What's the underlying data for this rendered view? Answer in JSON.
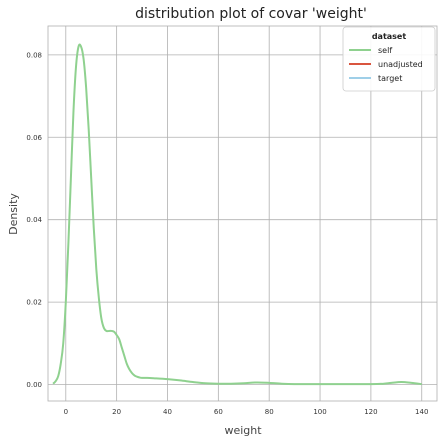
{
  "chart_data": {
    "type": "line",
    "title": "distribution plot of covar 'weight'",
    "xlabel": "weight",
    "ylabel": "Density",
    "xlim": [
      -7,
      146
    ],
    "ylim": [
      -0.004,
      0.087
    ],
    "xticks": [
      0,
      20,
      40,
      60,
      80,
      100,
      120,
      140
    ],
    "xtick_labels": [
      "0",
      "20",
      "40",
      "60",
      "80",
      "100",
      "120",
      "140"
    ],
    "yticks": [
      0.0,
      0.02,
      0.04,
      0.06,
      0.08
    ],
    "ytick_labels": [
      "0.00",
      "0.02",
      "0.04",
      "0.06",
      "0.08"
    ],
    "grid": true,
    "legend": {
      "title": "dataset",
      "placement": "top-right",
      "entries": [
        {
          "label": "self",
          "color": "#8fd18f"
        },
        {
          "label": "unadjusted",
          "color": "#d9553f"
        },
        {
          "label": "target",
          "color": "#9fcfe8"
        }
      ]
    },
    "series": [
      {
        "name": "self",
        "color": "#8fd18f",
        "x": [
          -5,
          -4,
          -3,
          -2,
          -1,
          0,
          1,
          2,
          3,
          4,
          5,
          6,
          7,
          8,
          9,
          10,
          11,
          12,
          13,
          14,
          15,
          16,
          17,
          18,
          19,
          20,
          21,
          22,
          23,
          24,
          25,
          26,
          27,
          28,
          29,
          30,
          32,
          35,
          40,
          45,
          50,
          55,
          60,
          65,
          70,
          75,
          80,
          85,
          90,
          95,
          100,
          105,
          110,
          115,
          120,
          125,
          128,
          132,
          136,
          140
        ],
        "y": [
          0.0002,
          0.0008,
          0.002,
          0.005,
          0.01,
          0.02,
          0.034,
          0.05,
          0.066,
          0.077,
          0.082,
          0.082,
          0.079,
          0.072,
          0.062,
          0.05,
          0.038,
          0.028,
          0.021,
          0.016,
          0.0137,
          0.013,
          0.013,
          0.013,
          0.0128,
          0.012,
          0.011,
          0.009,
          0.007,
          0.005,
          0.0037,
          0.0028,
          0.0022,
          0.0019,
          0.0017,
          0.0016,
          0.0016,
          0.0015,
          0.0013,
          0.001,
          0.0006,
          0.0003,
          0.0002,
          0.0002,
          0.0003,
          0.0005,
          0.0004,
          0.0002,
          0.0001,
          0.0001,
          0.0001,
          0.0001,
          0.0001,
          0.0001,
          0.0001,
          0.0002,
          0.0004,
          0.0006,
          0.0004,
          0.0001
        ]
      }
    ]
  }
}
